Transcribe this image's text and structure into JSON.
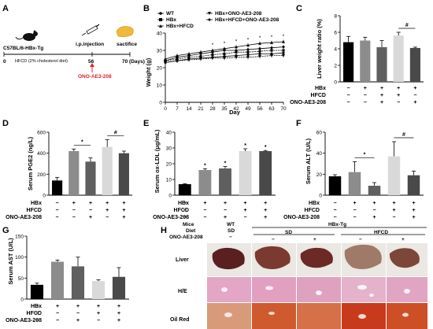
{
  "panels": {
    "A": {
      "letter": "A",
      "mouse_label": "C57BL/6-HBx-Tg",
      "injection_label": "i.p.injection",
      "end_label": "sactifice",
      "timeline_ticks": [
        "0",
        "56",
        "70 (Days)"
      ],
      "diet_label": "HFCD (2% cholesterol diet)",
      "drug_label": "ONO-AE3-208",
      "drug_color": "#e4202a"
    },
    "B": {
      "letter": "B",
      "legend": [
        "WT",
        "HBx",
        "HBx+HFCD",
        "HBx+ONO-AE3-208",
        "HBx+HFCD+ONO-AE3-208"
      ],
      "xlabel": "Day",
      "ylabel": "Weight (g)"
    },
    "C": {
      "letter": "C",
      "ylabel": "Liver weight ratio (%)"
    },
    "D": {
      "letter": "D",
      "ylabel": "Serum PGE2 (ng/L)"
    },
    "E": {
      "letter": "E",
      "ylabel": "Serum ox-LDL (μg/mL)"
    },
    "F": {
      "letter": "F",
      "ylabel": "Serum ALT (U/L)"
    },
    "G": {
      "letter": "G",
      "ylabel": "Serum AST (U/L)"
    },
    "H": {
      "letter": "H",
      "header": {
        "mice": "Mice",
        "diet": "Diet",
        "drug": "ONO-AE3-208",
        "wt": "WT",
        "wt_sd": "SD",
        "hbx_tg": "HBx-Tg",
        "sd": "SD",
        "hfcd": "HFCD",
        "minus": "−",
        "plus": "+"
      },
      "rows": [
        "Liver",
        "H/E",
        "Oil Red"
      ]
    },
    "conditions": {
      "labels": [
        "HBx",
        "HFCD",
        "ONO-AE3-208"
      ],
      "five": [
        [
          "−",
          "+",
          "+",
          "+",
          "+"
        ],
        [
          "−",
          "−",
          "−",
          "+",
          "+"
        ],
        [
          "−",
          "−",
          "+",
          "−",
          "+"
        ]
      ],
      "five_C": [
        [
          "−",
          "+",
          "+",
          "+",
          "+"
        ],
        [
          "−",
          "−",
          "+",
          "+",
          "−"
        ],
        [
          "−",
          "−",
          "+",
          "−",
          "+"
        ]
      ]
    },
    "colors": {
      "bars": [
        "#000000",
        "#8c8c8c",
        "#5f5f5f",
        "#d9d9d9",
        "#494949"
      ],
      "liver_bg": "#e8e4df",
      "he_bg": "#e6a6c4",
      "oil_bg": "#cc5a30"
    }
  },
  "chart_data": [
    {
      "panel": "B",
      "type": "line",
      "x": [
        0,
        7,
        14,
        21,
        28,
        35,
        42,
        49,
        56,
        63,
        70
      ],
      "xlim": [
        0,
        70
      ],
      "ylim": [
        0,
        40
      ],
      "yticks": [
        0,
        10,
        20,
        30,
        40
      ],
      "xlabel": "Day",
      "ylabel": "Weight (g)",
      "series": [
        {
          "name": "WT",
          "values": [
            23,
            24,
            25,
            25.5,
            26,
            26.5,
            27,
            27.5,
            28,
            28,
            28.5
          ]
        },
        {
          "name": "HBx",
          "values": [
            24,
            25,
            26,
            26.5,
            27.5,
            28,
            29,
            29,
            29.5,
            30,
            30
          ]
        },
        {
          "name": "HBx+HFCD",
          "values": [
            25,
            27,
            28,
            29,
            30,
            31,
            32,
            33,
            34,
            34.5,
            35
          ]
        },
        {
          "name": "HBx+ONO-AE3-208",
          "values": [
            23,
            24,
            24.5,
            25,
            25.5,
            25.5,
            26,
            26,
            26.5,
            27,
            27
          ]
        },
        {
          "name": "HBx+HFCD+ONO-AE3-208",
          "values": [
            24,
            26,
            27,
            28,
            29,
            30,
            30,
            30.5,
            31,
            31.5,
            32
          ]
        }
      ],
      "annotations": [
        "*",
        "*",
        "*",
        "*",
        "*",
        "*",
        "*"
      ]
    },
    {
      "panel": "C",
      "type": "bar",
      "ylim": [
        0,
        8
      ],
      "yticks": [
        0,
        2,
        4,
        6,
        8
      ],
      "ylabel": "Liver weight ratio (%)",
      "values": [
        4.8,
        5.0,
        4.2,
        5.6,
        4.1
      ],
      "errors": [
        0.7,
        0.4,
        0.8,
        0.4,
        0.1
      ],
      "annotations": [
        {
          "bracket": [
            3,
            4
          ],
          "label": "#"
        }
      ]
    },
    {
      "panel": "D",
      "type": "bar",
      "ylim": [
        0,
        600
      ],
      "yticks": [
        0,
        200,
        400,
        600
      ],
      "ylabel": "Serum PGE2 (ng/L)",
      "values": [
        140,
        420,
        320,
        460,
        400
      ],
      "errors": [
        30,
        20,
        35,
        70,
        20
      ],
      "annotations": [
        {
          "bracket": [
            1,
            2
          ],
          "label": "*"
        },
        {
          "bracket": [
            3,
            4
          ],
          "label": "#"
        }
      ]
    },
    {
      "panel": "E",
      "type": "bar",
      "ylim": [
        0,
        40
      ],
      "yticks": [
        0,
        10,
        20,
        30,
        40
      ],
      "ylabel": "Serum ox-LDL (μg/mL)",
      "values": [
        7,
        16,
        17,
        28,
        28
      ],
      "errors": [
        0.3,
        0.8,
        1.2,
        1.5,
        0.4
      ],
      "annotations": [
        {
          "bar": 1,
          "label": "*"
        },
        {
          "bar": 2,
          "label": "*"
        },
        {
          "bar": 3,
          "label": "*"
        },
        {
          "bar": 4,
          "label": "*"
        }
      ]
    },
    {
      "panel": "F",
      "type": "bar",
      "ylim": [
        0,
        60
      ],
      "yticks": [
        0,
        20,
        40,
        60
      ],
      "ylabel": "Serum ALT (U/L)",
      "values": [
        18,
        22,
        9,
        37,
        19
      ],
      "errors": [
        1.5,
        10,
        3,
        14,
        4
      ],
      "annotations": [
        {
          "bracket": [
            1,
            2
          ],
          "label": "*"
        },
        {
          "bracket": [
            3,
            4
          ],
          "label": "#"
        }
      ]
    },
    {
      "panel": "G",
      "type": "bar",
      "ylim": [
        0,
        150
      ],
      "yticks": [
        0,
        50,
        100,
        150
      ],
      "ylabel": "Serum AST (U/L)",
      "values": [
        34,
        89,
        78,
        43,
        53
      ],
      "errors": [
        4,
        4,
        22,
        3,
        22
      ]
    }
  ]
}
